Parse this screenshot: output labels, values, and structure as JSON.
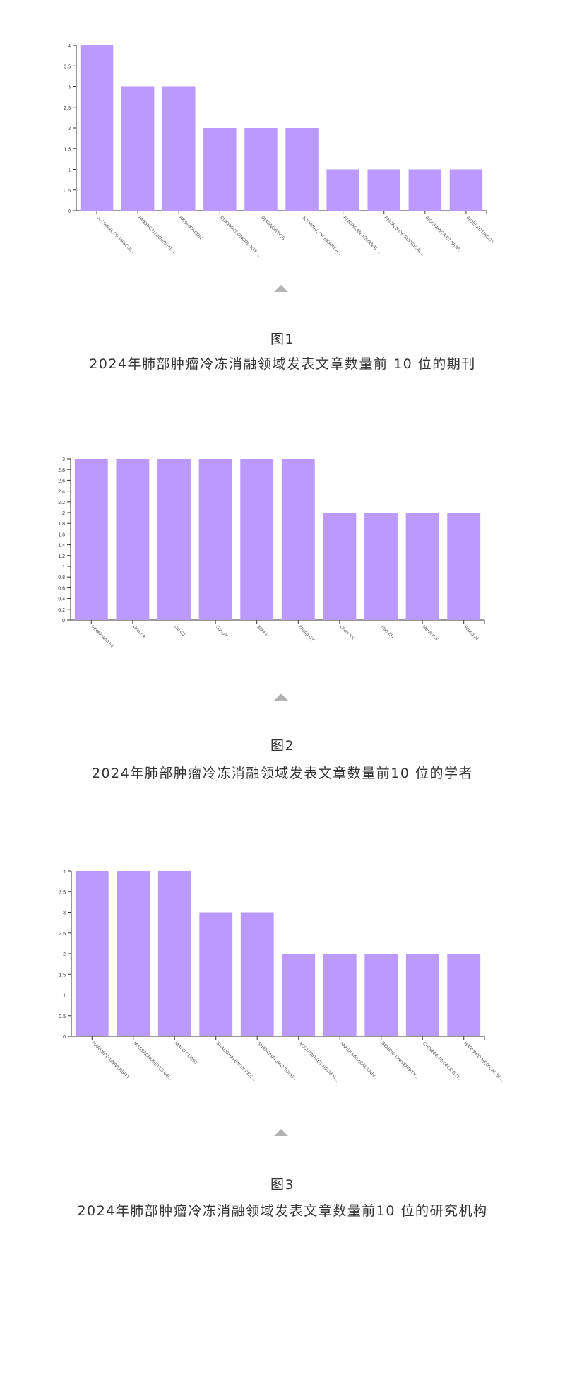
{
  "bar_color": "#bb99ff",
  "chart_data": [
    {
      "type": "bar",
      "categories": [
        "JOURNAL OF VASCUL...",
        "AMERICAN JOURNAL ...",
        "RESPIRATION",
        "CURRENT ONCOLOGY ...",
        "DIAGNOSTICS",
        "JOURNAL OF HEART A...",
        "AMERICAN JOURNAL ...",
        "ANNALS OF SURGICAL...",
        "BIOCHIMICA ET BIOP...",
        "BIOELECTRICITY"
      ],
      "values": [
        4,
        3,
        3,
        2,
        2,
        2,
        1,
        1,
        1,
        1
      ],
      "ylim": [
        0,
        4
      ],
      "yticks": [
        0,
        0.5,
        1,
        1.5,
        2,
        2.5,
        3,
        3.5,
        4
      ],
      "grid": false,
      "figure_label": "图1",
      "caption": "2024年肺部肿瘤冷冻消融领域发表文章数量前 10 位的期刊"
    },
    {
      "type": "bar",
      "categories": [
        "Fintelmann FJ",
        "Graur A",
        "Gu CJ",
        "Sun JY",
        "Xie FF",
        "Zhang CY",
        "Chen XX",
        "Han ZH",
        "Herth FJF",
        "Yeung JJ"
      ],
      "values": [
        3,
        3,
        3,
        3,
        3,
        3,
        2,
        2,
        2,
        2
      ],
      "ylim": [
        0,
        3
      ],
      "yticks": [
        0,
        0.2,
        0.4,
        0.6,
        0.8,
        1,
        1.2,
        1.4,
        1.6,
        1.8,
        2,
        2.2,
        2.4,
        2.6,
        2.8,
        3
      ],
      "grid": false,
      "figure_label": "图2",
      "caption": "2024年肺部肿瘤冷冻消融领域发表文章数量前10 位的学者"
    },
    {
      "type": "bar",
      "categories": [
        "HARVARD UNIVERSITY",
        "MASSACHUSETTS GE...",
        "MAYO CLINIC",
        "SHANGHAI ENGN RES...",
        "SHANGHAI JIAO TONG...",
        "ACCUTARGET MEDIPH...",
        "ANHUI MEDICAL UNIV...",
        "BEIJING UNIVERSITY ...",
        "CHINESE PEOPLE S LI...",
        "HARVARD MEDICAL SC..."
      ],
      "values": [
        4,
        4,
        4,
        3,
        3,
        2,
        2,
        2,
        2,
        2
      ],
      "ylim": [
        0,
        4
      ],
      "yticks": [
        0,
        0.5,
        1,
        1.5,
        2,
        2.5,
        3,
        3.5,
        4
      ],
      "grid": false,
      "figure_label": "图3",
      "caption": "2024年肺部肿瘤冷冻消融领域发表文章数量前10 位的研究机构"
    }
  ]
}
